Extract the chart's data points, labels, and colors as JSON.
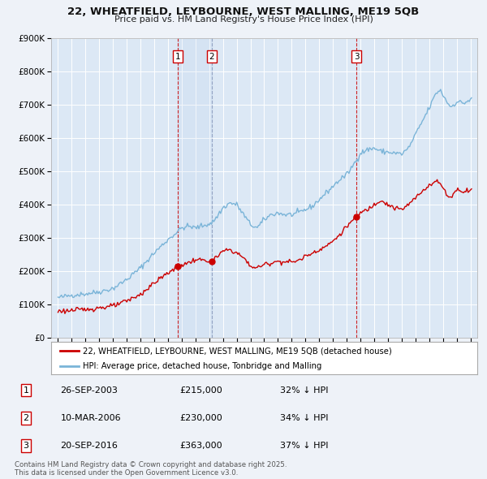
{
  "title_line1": "22, WHEATFIELD, LEYBOURNE, WEST MALLING, ME19 5QB",
  "title_line2": "Price paid vs. HM Land Registry's House Price Index (HPI)",
  "background_color": "#eef2f8",
  "plot_bg_color": "#dce8f5",
  "red_line_label": "22, WHEATFIELD, LEYBOURNE, WEST MALLING, ME19 5QB (detached house)",
  "blue_line_label": "HPI: Average price, detached house, Tonbridge and Malling",
  "transactions": [
    {
      "num": 1,
      "date": "26-SEP-2003",
      "price": 215000,
      "pct": "32%",
      "x_year": 2003.73
    },
    {
      "num": 2,
      "date": "10-MAR-2006",
      "price": 230000,
      "pct": "34%",
      "x_year": 2006.19
    },
    {
      "num": 3,
      "date": "20-SEP-2016",
      "price": 363000,
      "pct": "37%",
      "x_year": 2016.72
    }
  ],
  "footer": "Contains HM Land Registry data © Crown copyright and database right 2025.\nThis data is licensed under the Open Government Licence v3.0.",
  "ylim": [
    0,
    900000
  ],
  "yticks": [
    0,
    100000,
    200000,
    300000,
    400000,
    500000,
    600000,
    700000,
    800000,
    900000
  ],
  "xlim_start": 1994.5,
  "xlim_end": 2025.5
}
